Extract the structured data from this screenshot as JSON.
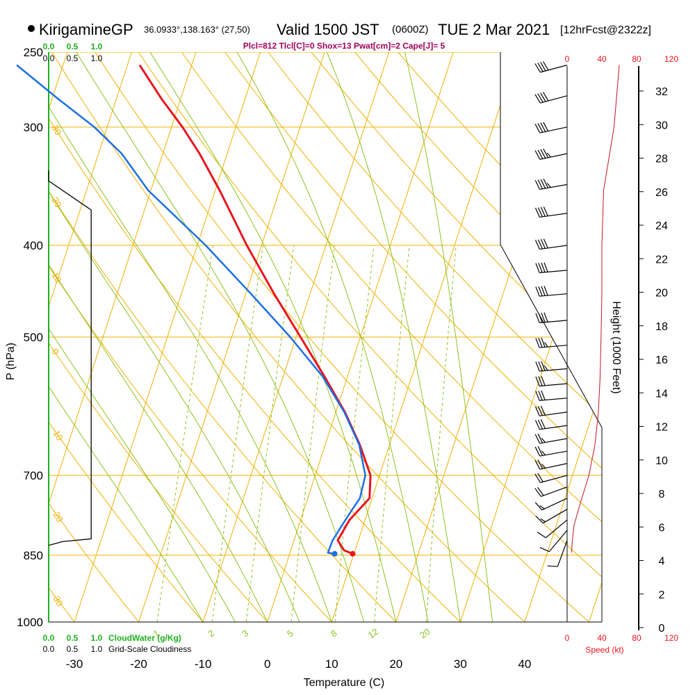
{
  "header": {
    "station": "KirigamineGP",
    "coords": "36.0933°,138.163° (27,50)",
    "valid_prefix": "Valid 1500 JST",
    "valid_zulu": "(0600Z)",
    "valid_date": "TUE 2 Mar 2021",
    "forecast": "[12hrFcst@2322z]"
  },
  "indices_text": "Plcl=812 Tlcl[C]=0 Shox=13 Pwat[cm]=2 Cape[J]= 5",
  "colors": {
    "temperature": "#e8141e",
    "dewpoint": "#1a6fe6",
    "isotherm_adiabat": "#f0b000",
    "moist_adiabat": "#8cc21e",
    "mixing_ratio": "#8cc21e",
    "cloud": "#1db01d",
    "wind_speed": "#e8141e",
    "height_profile": "#c8141e"
  },
  "chart_data": {
    "type": "skew-t",
    "xlabel": "Temperature (C)",
    "ylabel": "P (hPa)",
    "x_ticks": [
      -30,
      -20,
      -10,
      0,
      10,
      20,
      30,
      40
    ],
    "x_range_at_1000hPa": [
      -34,
      52
    ],
    "pressure_ticks": [
      250,
      300,
      400,
      500,
      700,
      850,
      1000
    ],
    "pressure_range": [
      1000,
      250
    ],
    "skew_deg_per_decade": 48,
    "dry_adiabat_labels": [
      -30,
      -20,
      -10,
      0,
      10,
      20,
      30
    ],
    "mixing_ratio_labels": [
      "1",
      "2",
      "3",
      "5",
      "8",
      "12",
      "20"
    ],
    "mixing_ratio_values": [
      1,
      2,
      3,
      5,
      8,
      12,
      20
    ],
    "temperature_profile": [
      {
        "p": 847,
        "t": 9.8
      },
      {
        "p": 840,
        "t": 8.3
      },
      {
        "p": 820,
        "t": 6.8
      },
      {
        "p": 780,
        "t": 7.6
      },
      {
        "p": 740,
        "t": 9.6
      },
      {
        "p": 700,
        "t": 8.6
      },
      {
        "p": 650,
        "t": 5.4
      },
      {
        "p": 600,
        "t": 1.4
      },
      {
        "p": 550,
        "t": -3.6
      },
      {
        "p": 500,
        "t": -9.3
      },
      {
        "p": 450,
        "t": -15.6
      },
      {
        "p": 400,
        "t": -22.3
      },
      {
        "p": 350,
        "t": -29.3
      },
      {
        "p": 320,
        "t": -34.3
      },
      {
        "p": 300,
        "t": -38.3
      },
      {
        "p": 280,
        "t": -43.0
      },
      {
        "p": 258,
        "t": -48.1
      }
    ],
    "dewpoint_profile": [
      {
        "p": 847,
        "t": 7.0
      },
      {
        "p": 845,
        "t": 5.9
      },
      {
        "p": 820,
        "t": 6.0
      },
      {
        "p": 790,
        "t": 6.7
      },
      {
        "p": 760,
        "t": 7.5
      },
      {
        "p": 740,
        "t": 8.1
      },
      {
        "p": 700,
        "t": 7.8
      },
      {
        "p": 650,
        "t": 5.3
      },
      {
        "p": 600,
        "t": 1.3
      },
      {
        "p": 550,
        "t": -3.9
      },
      {
        "p": 500,
        "t": -10.9
      },
      {
        "p": 450,
        "t": -19.2
      },
      {
        "p": 400,
        "t": -28.7
      },
      {
        "p": 350,
        "t": -40.4
      },
      {
        "p": 320,
        "t": -46.4
      },
      {
        "p": 300,
        "t": -52.0
      },
      {
        "p": 280,
        "t": -59.1
      },
      {
        "p": 258,
        "t": -67.2
      }
    ],
    "surface_temperature": {
      "p": 847,
      "t": 9.8
    },
    "surface_dewpoint": {
      "p": 847,
      "t": 7.0
    },
    "cloud_axis": {
      "top_labels_water": [
        "0.0",
        "0.5",
        "1.0"
      ],
      "top_labels_cloudiness": [
        "0.0",
        "0.5",
        "1.0"
      ],
      "bottom_labels_water": [
        "0.0",
        "0.5",
        "1.0"
      ],
      "bottom_labels_cloudiness": [
        "0.0",
        "0.5",
        "1.0"
      ],
      "water_label": "CloudWater (g/Kg)",
      "cloudiness_label": "Grid-Scale Cloudiness",
      "cloudiness_profile": [
        {
          "p": 342,
          "v": 0.0
        },
        {
          "p": 367,
          "v": 0.9
        },
        {
          "p": 817,
          "v": 0.9
        },
        {
          "p": 822,
          "v": 0.3
        },
        {
          "p": 830,
          "v": 0.0
        }
      ]
    },
    "wind": {
      "speed_ticks": [
        0,
        40,
        80,
        120
      ],
      "speed_label": "Speed (kt)",
      "barbs": [
        {
          "p": 258,
          "dir": 255,
          "spd": 40
        },
        {
          "p": 278,
          "dir": 255,
          "spd": 40
        },
        {
          "p": 300,
          "dir": 258,
          "spd": 40
        },
        {
          "p": 320,
          "dir": 258,
          "spd": 45
        },
        {
          "p": 345,
          "dir": 260,
          "spd": 45
        },
        {
          "p": 370,
          "dir": 262,
          "spd": 40
        },
        {
          "p": 400,
          "dir": 262,
          "spd": 40
        },
        {
          "p": 425,
          "dir": 265,
          "spd": 40
        },
        {
          "p": 450,
          "dir": 265,
          "spd": 40
        },
        {
          "p": 480,
          "dir": 265,
          "spd": 40
        },
        {
          "p": 510,
          "dir": 265,
          "spd": 35
        },
        {
          "p": 540,
          "dir": 265,
          "spd": 35
        },
        {
          "p": 560,
          "dir": 265,
          "spd": 30
        },
        {
          "p": 580,
          "dir": 265,
          "spd": 30
        },
        {
          "p": 600,
          "dir": 262,
          "spd": 30
        },
        {
          "p": 620,
          "dir": 262,
          "spd": 30
        },
        {
          "p": 640,
          "dir": 260,
          "spd": 25
        },
        {
          "p": 660,
          "dir": 260,
          "spd": 25
        },
        {
          "p": 680,
          "dir": 258,
          "spd": 25
        },
        {
          "p": 700,
          "dir": 255,
          "spd": 20
        },
        {
          "p": 720,
          "dir": 250,
          "spd": 20
        },
        {
          "p": 740,
          "dir": 245,
          "spd": 15
        },
        {
          "p": 760,
          "dir": 240,
          "spd": 15
        },
        {
          "p": 780,
          "dir": 230,
          "spd": 10
        },
        {
          "p": 800,
          "dir": 220,
          "spd": 10
        },
        {
          "p": 820,
          "dir": 200,
          "spd": 10
        }
      ],
      "speed_profile": [
        {
          "p": 845,
          "s": 5
        },
        {
          "p": 820,
          "s": 6
        },
        {
          "p": 790,
          "s": 8
        },
        {
          "p": 750,
          "s": 15
        },
        {
          "p": 700,
          "s": 25
        },
        {
          "p": 650,
          "s": 32
        },
        {
          "p": 600,
          "s": 36
        },
        {
          "p": 550,
          "s": 38
        },
        {
          "p": 500,
          "s": 39
        },
        {
          "p": 450,
          "s": 40
        },
        {
          "p": 400,
          "s": 40
        },
        {
          "p": 350,
          "s": 42
        },
        {
          "p": 300,
          "s": 54
        },
        {
          "p": 258,
          "s": 60
        }
      ]
    },
    "height_axis": {
      "label": "Height (1000 Feet)",
      "ticks": [
        0,
        2,
        4,
        6,
        8,
        10,
        12,
        14,
        16,
        18,
        20,
        22,
        24,
        26,
        28,
        30,
        32
      ]
    }
  }
}
